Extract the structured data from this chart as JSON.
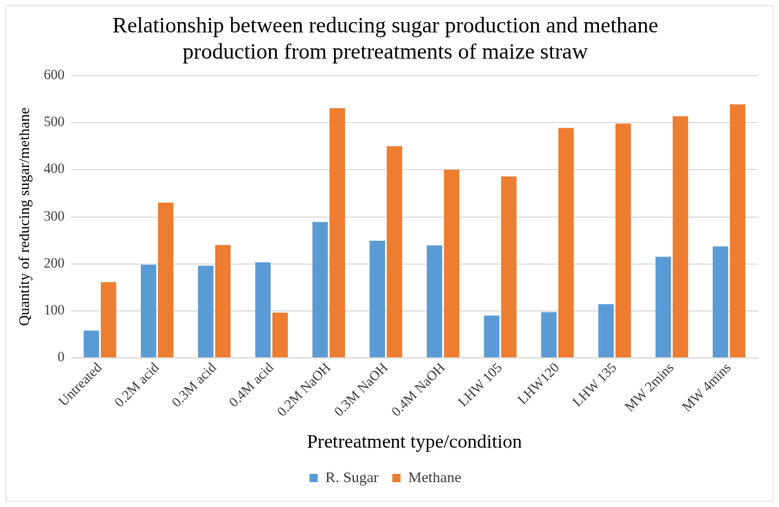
{
  "chart_data": {
    "type": "bar",
    "title": "Relationship between reducing sugar production and methane production from pretreatments of maize straw",
    "xlabel": "Pretreatment type/condition",
    "ylabel": "Quantity of reducing sugar/methane",
    "categories": [
      "Untreated",
      "0.2M acid",
      "0.3M acid",
      "0.4M acid",
      "0.2M NaOH",
      "0.3M NaOH",
      "0.4M NaOH",
      "LHW 105",
      "LHW120",
      "LHW 135",
      "MW 2mins",
      "MW 4mins"
    ],
    "series": [
      {
        "name": "R. Sugar",
        "color": "#5b9bd5",
        "values": [
          58,
          198,
          196,
          203,
          289,
          249,
          239,
          90,
          97,
          114,
          215,
          237
        ]
      },
      {
        "name": "Methane",
        "color": "#ed7d31",
        "values": [
          161,
          330,
          240,
          96,
          531,
          450,
          400,
          386,
          489,
          498,
          514,
          539
        ]
      }
    ],
    "ylim": [
      0,
      600
    ],
    "yticks": [
      0,
      100,
      200,
      300,
      400,
      500,
      600
    ],
    "grid": "y",
    "legend": "bottom"
  }
}
